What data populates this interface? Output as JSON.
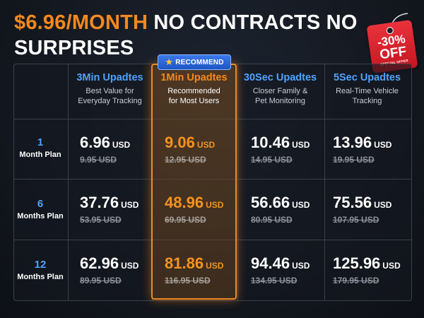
{
  "headline": {
    "price": "$6.96/MONTH",
    "rest": " NO CONTRACTS NO SURPRISES"
  },
  "sale_tag": {
    "percent": "-30%",
    "off": "OFF",
    "sub": "SPECIAL OFFER"
  },
  "badge": {
    "label": "RECOMMEND"
  },
  "columns": [
    {
      "title": "3Min Upadtes",
      "desc1": "Best Value for",
      "desc2": "Everyday Tracking"
    },
    {
      "title": "1Min Upadtes",
      "desc1": "Recommended",
      "desc2": "for Most Users"
    },
    {
      "title": "30Sec Upadtes",
      "desc1": "Closer Family &",
      "desc2": "Pet Monitoring"
    },
    {
      "title": "5Sec Upadtes",
      "desc1": "Real-Time Vehicle",
      "desc2": "Tracking"
    }
  ],
  "rows": [
    {
      "num": "1",
      "unit": "Month Plan",
      "cells": [
        {
          "price": "6.96",
          "currency": "USD",
          "orig": "9.95 USD"
        },
        {
          "price": "9.06",
          "currency": "USD",
          "orig": "12.95 USD"
        },
        {
          "price": "10.46",
          "currency": "USD",
          "orig": "14.95 USD"
        },
        {
          "price": "13.96",
          "currency": "USD",
          "orig": "19.95 USD"
        }
      ]
    },
    {
      "num": "6",
      "unit": "Months Plan",
      "cells": [
        {
          "price": "37.76",
          "currency": "USD",
          "orig": "53.95 USD"
        },
        {
          "price": "48.96",
          "currency": "USD",
          "orig": "69.95 USD"
        },
        {
          "price": "56.66",
          "currency": "USD",
          "orig": "80.95 USD"
        },
        {
          "price": "75.56",
          "currency": "USD",
          "orig": "107.95 USD"
        }
      ]
    },
    {
      "num": "12",
      "unit": "Months Plan",
      "cells": [
        {
          "price": "62.96",
          "currency": "USD",
          "orig": "89.95 USD"
        },
        {
          "price": "81.86",
          "currency": "USD",
          "orig": "116.95 USD"
        },
        {
          "price": "94.46",
          "currency": "USD",
          "orig": "134.95 USD"
        },
        {
          "price": "125.96",
          "currency": "USD",
          "orig": "179.95 USD"
        }
      ]
    }
  ]
}
